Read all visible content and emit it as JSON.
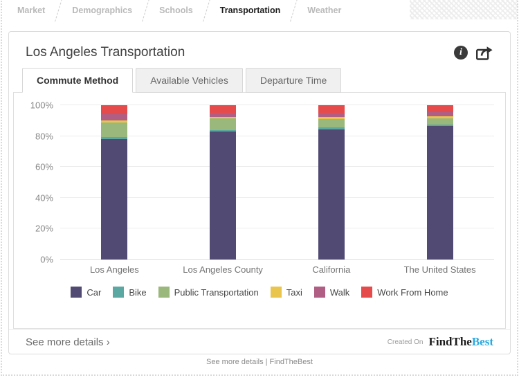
{
  "top_tabs": {
    "items": [
      {
        "label": "Market",
        "active": false
      },
      {
        "label": "Demographics",
        "active": false
      },
      {
        "label": "Schools",
        "active": false
      },
      {
        "label": "Transportation",
        "active": true
      },
      {
        "label": "Weather",
        "active": false
      }
    ]
  },
  "card": {
    "title": "Los Angeles Transportation",
    "actions": {
      "icons": [
        "info-icon",
        "share-icon"
      ]
    },
    "sub_tabs": [
      {
        "label": "Commute Method",
        "active": true
      },
      {
        "label": "Available Vehicles",
        "active": false
      },
      {
        "label": "Departure Time",
        "active": false
      }
    ],
    "footer": {
      "see_more": "See more details ›",
      "created_on": "Created On",
      "brand": {
        "dark": "FindThe",
        "light": "Best",
        "light_color": "#2aa9e0"
      }
    }
  },
  "page_footer": {
    "text": "See more details | FindTheBest"
  },
  "chart_data": {
    "type": "bar",
    "stacked": true,
    "orientation": "vertical",
    "unit": "%",
    "title": "Los Angeles Transportation - Commute Method",
    "categories": [
      "Los Angeles",
      "Los Angeles County",
      "California",
      "The United States"
    ],
    "series": [
      {
        "name": "Car",
        "color": "#514b73",
        "values": [
          78,
          83,
          84.5,
          86.5
        ]
      },
      {
        "name": "Bike",
        "color": "#5ba7a1",
        "values": [
          1.5,
          1,
          1,
          1
        ]
      },
      {
        "name": "Public Transportation",
        "color": "#9bb87c",
        "values": [
          9.5,
          7.5,
          5.5,
          4
        ]
      },
      {
        "name": "Taxi",
        "color": "#eac54d",
        "values": [
          1,
          1,
          1.5,
          1.5
        ]
      },
      {
        "name": "Walk",
        "color": "#b05e83",
        "values": [
          4,
          2.5,
          2.5,
          2.5
        ]
      },
      {
        "name": "Work From Home",
        "color": "#e64b4b",
        "values": [
          6,
          5,
          5,
          4.5
        ]
      }
    ],
    "y_ticks": [
      0,
      20,
      40,
      60,
      80,
      100
    ],
    "ylim": [
      0,
      100
    ],
    "grid": true,
    "legend_position": "bottom"
  }
}
